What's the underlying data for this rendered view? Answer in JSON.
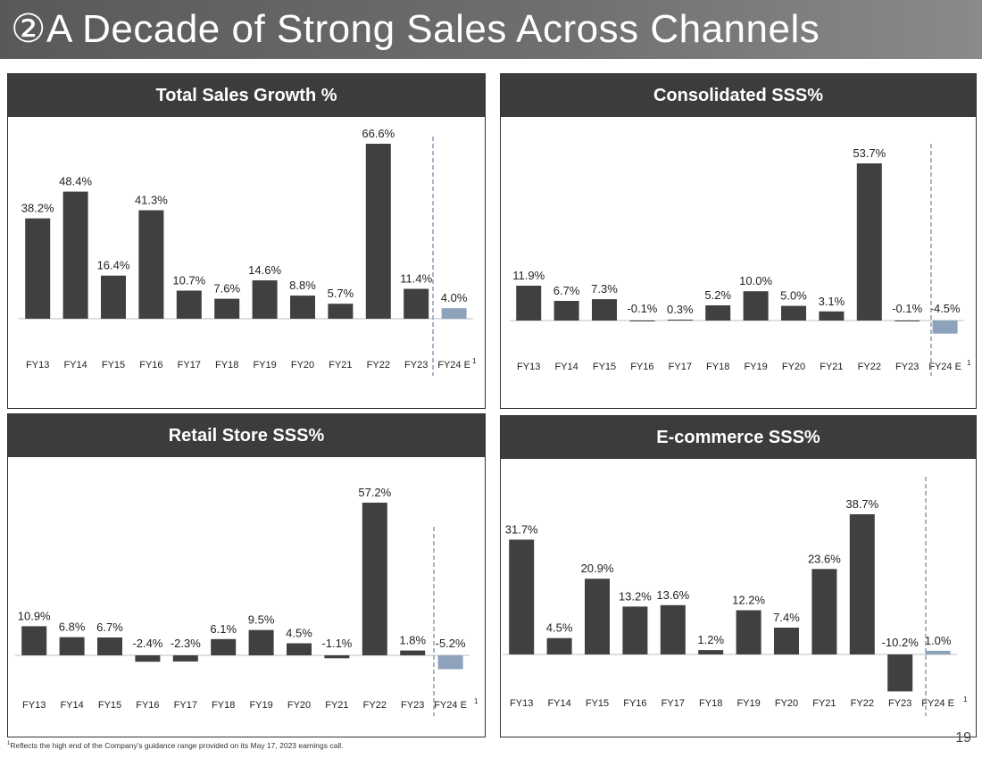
{
  "title": {
    "marker": "②",
    "text": "A Decade of Strong Sales Across Channels"
  },
  "colors": {
    "bar": "#404040",
    "estimate_bar": "#8ea2bb",
    "divider": "#8a9bb5",
    "header_bg": "#3c3c3c"
  },
  "chart_data": [
    {
      "type": "bar",
      "title": "Total Sales Growth %",
      "categories": [
        "FY13",
        "FY14",
        "FY15",
        "FY16",
        "FY17",
        "FY18",
        "FY19",
        "FY20",
        "FY21",
        "FY22",
        "FY23",
        "FY24 E"
      ],
      "values": [
        38.2,
        48.4,
        16.4,
        41.3,
        10.7,
        7.6,
        14.6,
        8.8,
        5.7,
        66.6,
        11.4,
        4.0
      ],
      "labels": [
        "38.2%",
        "48.4%",
        "16.4%",
        "41.3%",
        "10.7%",
        "7.6%",
        "14.6%",
        "8.8%",
        "5.7%",
        "66.6%",
        "11.4%",
        "4.0%"
      ],
      "footnote_marker": "1"
    },
    {
      "type": "bar",
      "title": "Consolidated SSS%",
      "categories": [
        "FY13",
        "FY14",
        "FY15",
        "FY16",
        "FY17",
        "FY18",
        "FY19",
        "FY20",
        "FY21",
        "FY22",
        "FY23",
        "FY24 E"
      ],
      "values": [
        11.9,
        6.7,
        7.3,
        -0.1,
        0.3,
        5.2,
        10.0,
        5.0,
        3.1,
        53.7,
        -0.1,
        -4.5
      ],
      "labels": [
        "11.9%",
        "6.7%",
        "7.3%",
        "-0.1%",
        "0.3%",
        "5.2%",
        "10.0%",
        "5.0%",
        "3.1%",
        "53.7%",
        "-0.1%",
        "-4.5%"
      ],
      "footnote_marker": "1"
    },
    {
      "type": "bar",
      "title": "Retail Store SSS%",
      "categories": [
        "FY13",
        "FY14",
        "FY15",
        "FY16",
        "FY17",
        "FY18",
        "FY19",
        "FY20",
        "FY21",
        "FY22",
        "FY23",
        "FY24 E"
      ],
      "values": [
        10.9,
        6.8,
        6.7,
        -2.4,
        -2.3,
        6.1,
        9.5,
        4.5,
        -1.1,
        57.2,
        1.8,
        -5.2
      ],
      "labels": [
        "10.9%",
        "6.8%",
        "6.7%",
        "-2.4%",
        "-2.3%",
        "6.1%",
        "9.5%",
        "4.5%",
        "-1.1%",
        "57.2%",
        "1.8%",
        "-5.2%"
      ],
      "footnote_marker": "1"
    },
    {
      "type": "bar",
      "title": "E-commerce SSS%",
      "categories": [
        "FY13",
        "FY14",
        "FY15",
        "FY16",
        "FY17",
        "FY18",
        "FY19",
        "FY20",
        "FY21",
        "FY22",
        "FY23",
        "FY24 E"
      ],
      "values": [
        31.7,
        4.5,
        20.9,
        13.2,
        13.6,
        1.2,
        12.2,
        7.4,
        23.6,
        38.7,
        -10.2,
        1.0
      ],
      "labels": [
        "31.7%",
        "4.5%",
        "20.9%",
        "13.2%",
        "13.6%",
        "1.2%",
        "12.2%",
        "7.4%",
        "23.6%",
        "38.7%",
        "-10.2%",
        "1.0%"
      ],
      "footnote_marker": "1"
    }
  ],
  "footnote": {
    "marker": "1",
    "text": "Reflects the high end of the Company’s guidance range provided on its May 17, 2023 earnings call."
  },
  "page_number": "19"
}
